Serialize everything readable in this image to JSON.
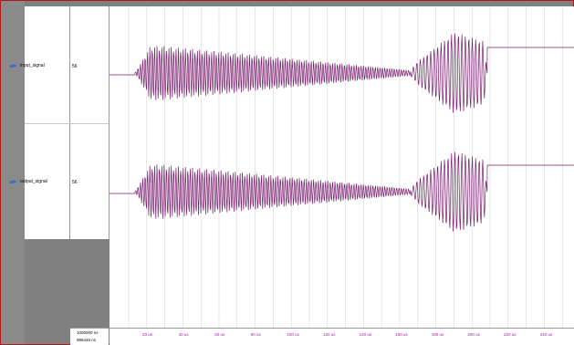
{
  "signals": [
    {
      "name": "input_signal",
      "value": "56"
    },
    {
      "name": "output_signal",
      "value": "56"
    }
  ],
  "cursor": {
    "time_primary": "1000000 ns",
    "time_secondary": "999446 ns"
  },
  "timeline": {
    "tick_labels": [
      "20 us",
      "40 us",
      "60 us",
      "80 us",
      "100 us",
      "120 us",
      "140 us",
      "160 us",
      "180 us",
      "200 us",
      "220 us",
      "240 us"
    ]
  },
  "colors": {
    "waveform": "#7a1f6e",
    "tick_text": "#a01ca0",
    "frame_border": "#b01818"
  },
  "icons": {
    "signal": "signal-icon"
  }
}
